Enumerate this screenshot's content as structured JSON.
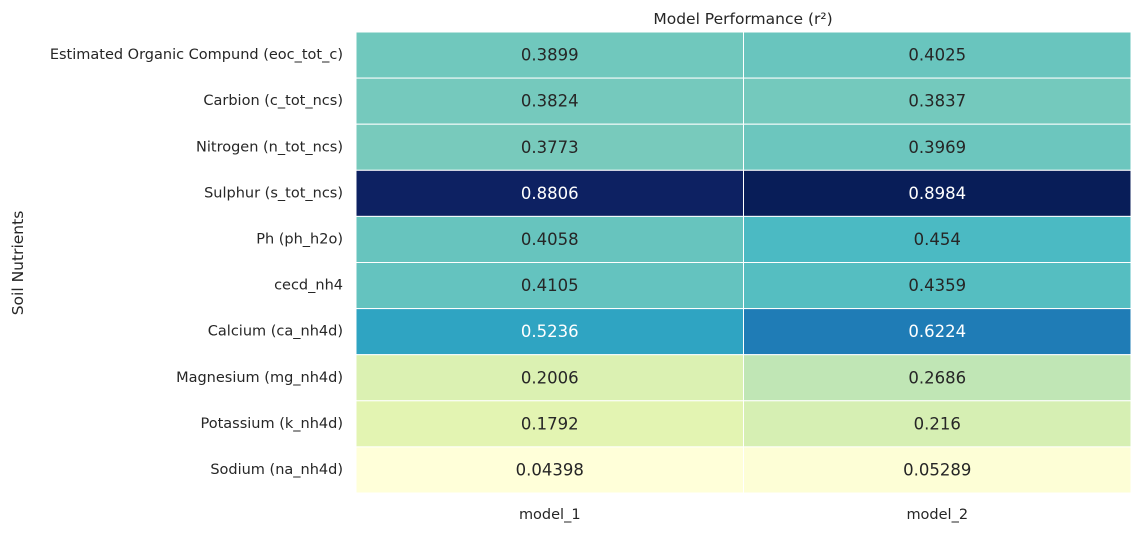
{
  "chart_data": {
    "type": "heatmap",
    "title": "Model Performance (r²)",
    "xlabel": "",
    "ylabel": "Soil Nutrients",
    "columns": [
      "model_1",
      "model_2"
    ],
    "rows": [
      "Estimated Organic Compund (eoc_tot_c)",
      "Carbion (c_tot_ncs)",
      "Nitrogen (n_tot_ncs)",
      "Sulphur (s_tot_ncs)",
      "Ph (ph_h2o)",
      "cecd_nh4",
      "Calcium (ca_nh4d)",
      "Magnesium (mg_nh4d)",
      "Potassium (k_nh4d)",
      "Sodium (na_nh4d)"
    ],
    "values": [
      [
        0.3899,
        0.4025
      ],
      [
        0.3824,
        0.3837
      ],
      [
        0.3773,
        0.3969
      ],
      [
        0.8806,
        0.8984
      ],
      [
        0.4058,
        0.454
      ],
      [
        0.4105,
        0.4359
      ],
      [
        0.5236,
        0.6224
      ],
      [
        0.2006,
        0.2686
      ],
      [
        0.1792,
        0.216
      ],
      [
        0.04398,
        0.05289
      ]
    ],
    "value_labels": [
      [
        "0.3899",
        "0.4025"
      ],
      [
        "0.3824",
        "0.3837"
      ],
      [
        "0.3773",
        "0.3969"
      ],
      [
        "0.8806",
        "0.8984"
      ],
      [
        "0.4058",
        "0.454"
      ],
      [
        "0.4105",
        "0.4359"
      ],
      [
        "0.5236",
        "0.6224"
      ],
      [
        "0.2006",
        "0.2686"
      ],
      [
        "0.1792",
        "0.216"
      ],
      [
        "0.04398",
        "0.05289"
      ]
    ],
    "colormap": "YlGnBu",
    "value_range": [
      0.04398,
      0.8984
    ],
    "grid_lines_color": "#ffffff",
    "annotated": true,
    "colorbar": false
  }
}
